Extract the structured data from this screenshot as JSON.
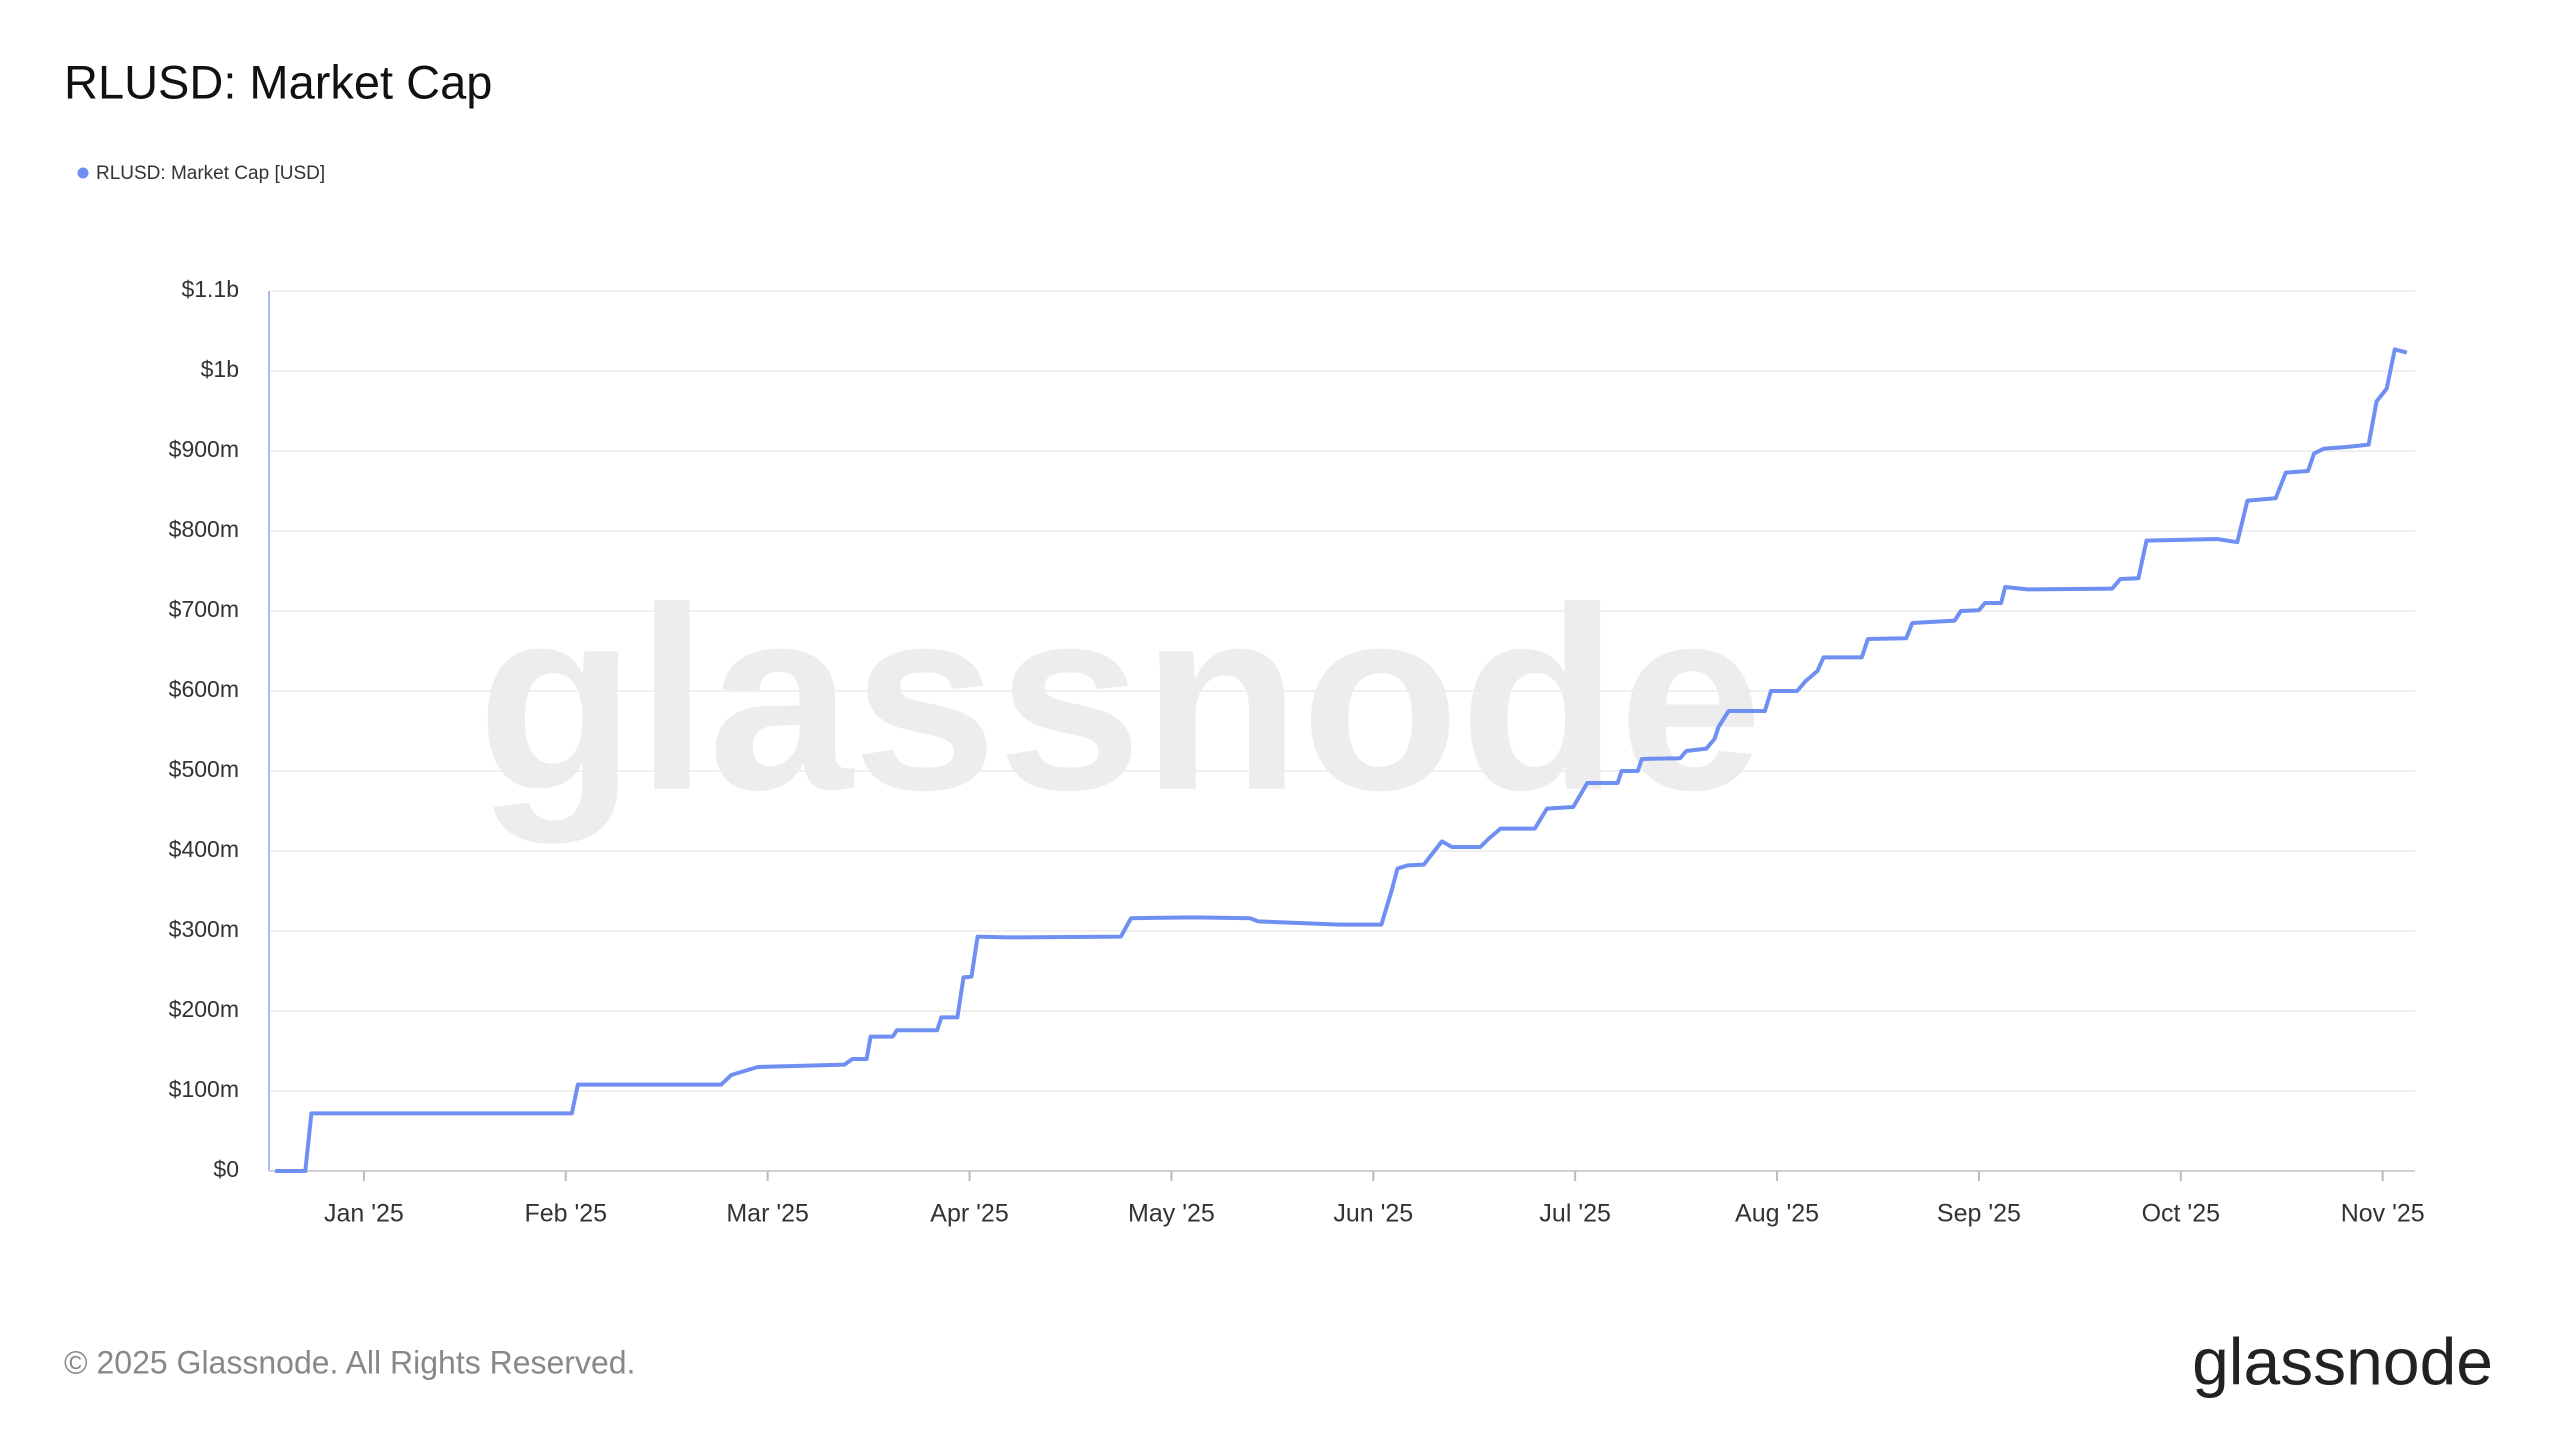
{
  "chart_data": {
    "type": "line",
    "title": "RLUSD: Market Cap",
    "x": [
      0.56,
      0.71,
      0.74,
      2.03,
      2.06,
      2.77,
      2.82,
      2.95,
      3.38,
      3.42,
      3.49,
      3.51,
      3.62,
      3.64,
      3.84,
      3.86,
      3.94,
      3.97,
      4.01,
      4.04,
      4.19,
      4.75,
      4.8,
      5.11,
      5.39,
      5.43,
      5.63,
      5.83,
      6.04,
      6.09,
      6.12,
      6.17,
      6.25,
      6.34,
      6.39,
      6.53,
      6.57,
      6.63,
      6.8,
      6.86,
      6.99,
      7.06,
      7.21,
      7.23,
      7.31,
      7.33,
      7.52,
      7.55,
      7.65,
      7.69,
      7.71,
      7.76,
      7.94,
      7.97,
      8.1,
      8.14,
      8.2,
      8.23,
      8.42,
      8.45,
      8.64,
      8.67,
      8.88,
      8.91,
      9.0,
      9.03,
      9.11,
      9.13,
      9.24,
      9.66,
      9.7,
      9.79,
      9.83,
      10.18,
      10.28,
      10.33,
      10.47,
      10.52,
      10.63,
      10.66,
      10.71,
      10.82,
      10.93,
      10.97,
      11.02,
      11.06,
      11.12
    ],
    "series": [
      {
        "name": "RLUSD: Market Cap [USD]",
        "color": "#6f8ff2",
        "values": [
          0,
          0,
          72000000,
          72000000,
          108000000,
          108000000,
          120000000,
          130000000,
          133000000,
          140000000,
          140000000,
          168000000,
          168000000,
          176000000,
          176000000,
          192000000,
          192000000,
          242000000,
          243000000,
          293000000,
          292000000,
          293000000,
          316000000,
          317000000,
          316000000,
          312000000,
          310000000,
          308000000,
          308000000,
          350000000,
          378000000,
          382000000,
          383000000,
          412000000,
          405000000,
          405000000,
          415000000,
          428000000,
          428000000,
          453000000,
          455000000,
          485000000,
          485000000,
          500000000,
          500000000,
          515000000,
          516000000,
          525000000,
          528000000,
          540000000,
          555000000,
          575000000,
          575000000,
          600000000,
          600000000,
          612000000,
          625000000,
          642000000,
          642000000,
          665000000,
          666000000,
          685000000,
          688000000,
          700000000,
          701000000,
          710000000,
          710000000,
          730000000,
          727000000,
          728000000,
          740000000,
          741000000,
          788000000,
          790000000,
          786000000,
          838000000,
          841000000,
          873000000,
          875000000,
          897000000,
          903000000,
          905000000,
          908000000,
          962000000,
          978000000,
          1027000000,
          1023000000
        ]
      }
    ],
    "xlim": [
      0.53,
      11.16
    ],
    "xticks": [
      {
        "value": 1,
        "label": "Jan '25"
      },
      {
        "value": 2,
        "label": "Feb '25"
      },
      {
        "value": 3,
        "label": "Mar '25"
      },
      {
        "value": 4,
        "label": "Apr '25"
      },
      {
        "value": 5,
        "label": "May '25"
      },
      {
        "value": 6,
        "label": "Jun '25"
      },
      {
        "value": 7,
        "label": "Jul '25"
      },
      {
        "value": 8,
        "label": "Aug '25"
      },
      {
        "value": 9,
        "label": "Sep '25"
      },
      {
        "value": 10,
        "label": "Oct '25"
      },
      {
        "value": 11,
        "label": "Nov '25"
      }
    ],
    "ylim": [
      0,
      1100000000
    ],
    "yticks": [
      {
        "value": 0,
        "label": "$0"
      },
      {
        "value": 100000000,
        "label": "$100m"
      },
      {
        "value": 200000000,
        "label": "$200m"
      },
      {
        "value": 300000000,
        "label": "$300m"
      },
      {
        "value": 400000000,
        "label": "$400m"
      },
      {
        "value": 500000000,
        "label": "$500m"
      },
      {
        "value": 600000000,
        "label": "$600m"
      },
      {
        "value": 700000000,
        "label": "$700m"
      },
      {
        "value": 800000000,
        "label": "$800m"
      },
      {
        "value": 900000000,
        "label": "$900m"
      },
      {
        "value": 1000000000,
        "label": "$1b"
      },
      {
        "value": 1100000000,
        "label": "$1.1b"
      }
    ],
    "grid": true,
    "watermark": "glassnode"
  },
  "footer": {
    "copyright": "© 2025 Glassnode. All Rights Reserved.",
    "logo": "glassnode"
  }
}
